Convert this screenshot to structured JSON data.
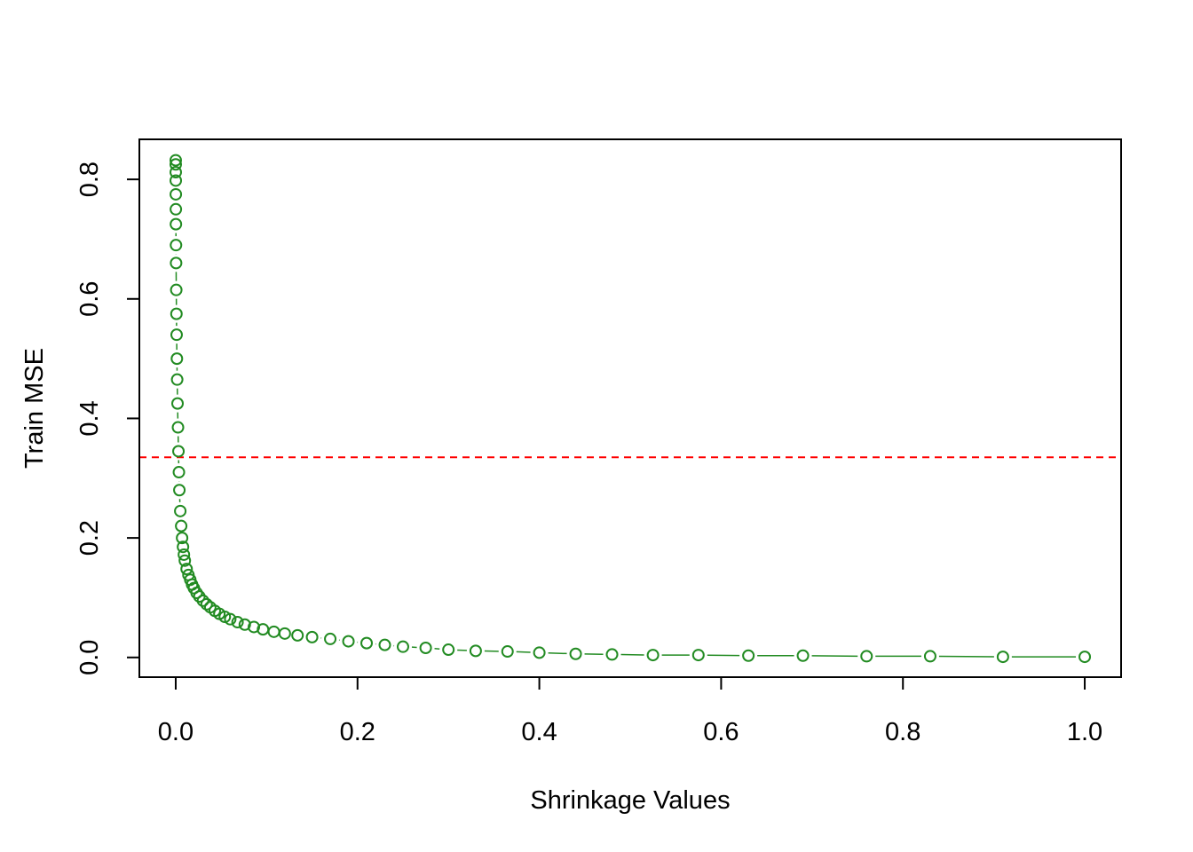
{
  "chart_data": {
    "type": "scatter",
    "xlabel": "Shrinkage Values",
    "ylabel": "Train MSE",
    "xlim": [
      -0.04,
      1.04
    ],
    "ylim": [
      -0.033,
      0.867
    ],
    "x_ticks": [
      "0.0",
      "0.2",
      "0.4",
      "0.6",
      "0.8",
      "1.0"
    ],
    "y_ticks": [
      "0.0",
      "0.2",
      "0.4",
      "0.6",
      "0.8"
    ],
    "reference_line": {
      "y": 0.335,
      "style": "dashed",
      "color": "#ff0000"
    },
    "point_color": "#228b22",
    "connecting_line": true,
    "grid": false,
    "legend": "none",
    "series": [
      {
        "x": [
          1e-05,
          2e-05,
          4e-05,
          6e-05,
          0.0001,
          0.00015,
          0.0002,
          0.0003,
          0.0004,
          0.0006,
          0.0008,
          0.001,
          0.0013,
          0.0016,
          0.002,
          0.0025,
          0.003,
          0.0035,
          0.004,
          0.005,
          0.006,
          0.007,
          0.008,
          0.009,
          0.01,
          0.012,
          0.014,
          0.016,
          0.018,
          0.02,
          0.023,
          0.026,
          0.03,
          0.034,
          0.038,
          0.043,
          0.048,
          0.054,
          0.06,
          0.068,
          0.076,
          0.086,
          0.096,
          0.108,
          0.12,
          0.134,
          0.15,
          0.17,
          0.19,
          0.21,
          0.23,
          0.25,
          0.275,
          0.3,
          0.33,
          0.365,
          0.4,
          0.44,
          0.48,
          0.525,
          0.575,
          0.63,
          0.69,
          0.76,
          0.83,
          0.91,
          1.0
        ],
        "y": [
          0.832,
          0.825,
          0.812,
          0.798,
          0.775,
          0.75,
          0.725,
          0.69,
          0.66,
          0.615,
          0.575,
          0.54,
          0.5,
          0.465,
          0.425,
          0.385,
          0.345,
          0.31,
          0.28,
          0.245,
          0.22,
          0.2,
          0.185,
          0.172,
          0.162,
          0.148,
          0.138,
          0.13,
          0.122,
          0.116,
          0.108,
          0.102,
          0.095,
          0.089,
          0.084,
          0.078,
          0.073,
          0.068,
          0.064,
          0.059,
          0.055,
          0.051,
          0.047,
          0.043,
          0.04,
          0.037,
          0.034,
          0.031,
          0.027,
          0.024,
          0.021,
          0.018,
          0.016,
          0.013,
          0.011,
          0.01,
          0.008,
          0.006,
          0.005,
          0.004,
          0.004,
          0.003,
          0.003,
          0.002,
          0.002,
          0.001,
          0.001
        ]
      }
    ]
  }
}
